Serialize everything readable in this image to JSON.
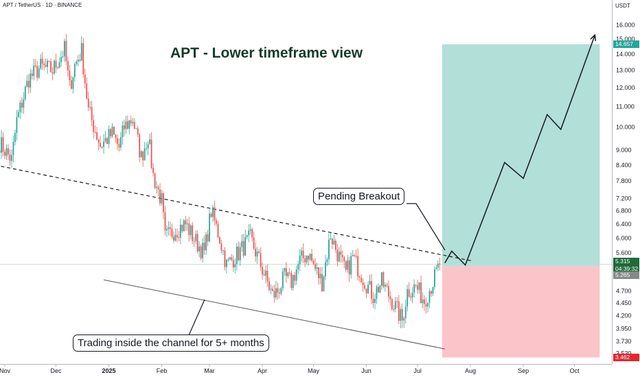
{
  "header": {
    "pair_title": "APT / TetherUS · 1D · BINANCE",
    "currency": "USDT"
  },
  "headline": "APT - Lower timeframe view",
  "annotations": {
    "pending_breakout": "Pending Breakout",
    "channel_note": "Trading inside the channel for 5+ months"
  },
  "price_tags": {
    "target": "14.657",
    "current": "5.315",
    "countdown": "04:39:32",
    "entry": "5.265",
    "stop": "3.462"
  },
  "colors": {
    "up": "#26a69a",
    "down": "#ef5350",
    "target_zone": "#b2dfd8",
    "stop_zone": "#fbc4c9",
    "current_tag": "#1e6b3a",
    "stop_tag": "#e5262d",
    "entry_tag": "#888888",
    "target_tag": "#26a69a"
  },
  "chart_data": {
    "type": "candlestick",
    "y_scale": "log",
    "ylim": [
      3.4,
      17.2
    ],
    "y_ticks": [
      "16.000",
      "15.000",
      "14.000",
      "13.000",
      "12.000",
      "11.000",
      "10.000",
      "9.000",
      "8.400",
      "7.800",
      "7.200",
      "6.800",
      "6.400",
      "6.000",
      "5.600",
      "4.700",
      "4.450",
      "4.200",
      "3.950",
      "3.730",
      "3.530"
    ],
    "x_ticks": [
      {
        "label": "Nov",
        "date": "2024-11-01",
        "bold": false
      },
      {
        "label": "Dec",
        "date": "2024-12-01",
        "bold": false
      },
      {
        "label": "2025",
        "date": "2025-01-01",
        "bold": true
      },
      {
        "label": "Feb",
        "date": "2025-02-01",
        "bold": false
      },
      {
        "label": "Mar",
        "date": "2025-03-01",
        "bold": false
      },
      {
        "label": "Apr",
        "date": "2025-04-01",
        "bold": false
      },
      {
        "label": "May",
        "date": "2025-05-01",
        "bold": false
      },
      {
        "label": "Jun",
        "date": "2025-06-01",
        "bold": false
      },
      {
        "label": "Jul",
        "date": "2025-07-01",
        "bold": false
      },
      {
        "label": "Aug",
        "date": "2025-08-01",
        "bold": false
      },
      {
        "label": "Sep",
        "date": "2025-09-01",
        "bold": false
      },
      {
        "label": "Oct",
        "date": "2025-10-01",
        "bold": false
      }
    ],
    "price_path": [
      {
        "date": "2024-10-29",
        "close": 9.3
      },
      {
        "date": "2024-11-05",
        "close": 8.6
      },
      {
        "date": "2024-11-08",
        "close": 10.3
      },
      {
        "date": "2024-11-15",
        "close": 12.5
      },
      {
        "date": "2024-11-22",
        "close": 13.2
      },
      {
        "date": "2024-11-29",
        "close": 13.0
      },
      {
        "date": "2024-12-06",
        "close": 14.3
      },
      {
        "date": "2024-12-09",
        "close": 12.0
      },
      {
        "date": "2024-12-12",
        "close": 13.3
      },
      {
        "date": "2024-12-16",
        "close": 14.2
      },
      {
        "date": "2024-12-20",
        "close": 10.8
      },
      {
        "date": "2024-12-27",
        "close": 9.2
      },
      {
        "date": "2025-01-03",
        "close": 9.7
      },
      {
        "date": "2025-01-07",
        "close": 9.1
      },
      {
        "date": "2025-01-10",
        "close": 10.0
      },
      {
        "date": "2025-01-15",
        "close": 10.4
      },
      {
        "date": "2025-01-20",
        "close": 8.7
      },
      {
        "date": "2025-01-24",
        "close": 9.6
      },
      {
        "date": "2025-01-27",
        "close": 8.0
      },
      {
        "date": "2025-02-01",
        "close": 7.1
      },
      {
        "date": "2025-02-03",
        "close": 6.0
      },
      {
        "date": "2025-02-08",
        "close": 6.2
      },
      {
        "date": "2025-02-15",
        "close": 6.4
      },
      {
        "date": "2025-02-21",
        "close": 5.9
      },
      {
        "date": "2025-02-26",
        "close": 5.6
      },
      {
        "date": "2025-03-02",
        "close": 6.8
      },
      {
        "date": "2025-03-07",
        "close": 6.0
      },
      {
        "date": "2025-03-11",
        "close": 5.3
      },
      {
        "date": "2025-03-18",
        "close": 5.6
      },
      {
        "date": "2025-03-25",
        "close": 6.0
      },
      {
        "date": "2025-03-31",
        "close": 5.3
      },
      {
        "date": "2025-04-07",
        "close": 4.6
      },
      {
        "date": "2025-04-10",
        "close": 4.7
      },
      {
        "date": "2025-04-14",
        "close": 5.0
      },
      {
        "date": "2025-04-18",
        "close": 4.9
      },
      {
        "date": "2025-04-23",
        "close": 5.4
      },
      {
        "date": "2025-04-28",
        "close": 5.6
      },
      {
        "date": "2025-05-02",
        "close": 5.2
      },
      {
        "date": "2025-05-06",
        "close": 4.9
      },
      {
        "date": "2025-05-11",
        "close": 6.1
      },
      {
        "date": "2025-05-15",
        "close": 5.6
      },
      {
        "date": "2025-05-20",
        "close": 5.1
      },
      {
        "date": "2025-05-24",
        "close": 5.5
      },
      {
        "date": "2025-05-30",
        "close": 5.0
      },
      {
        "date": "2025-06-05",
        "close": 4.6
      },
      {
        "date": "2025-06-10",
        "close": 4.9
      },
      {
        "date": "2025-06-16",
        "close": 4.5
      },
      {
        "date": "2025-06-22",
        "close": 4.1
      },
      {
        "date": "2025-06-25",
        "close": 4.7
      },
      {
        "date": "2025-06-30",
        "close": 4.8
      },
      {
        "date": "2025-07-05",
        "close": 4.5
      },
      {
        "date": "2025-07-10",
        "close": 4.9
      },
      {
        "date": "2025-07-14",
        "close": 5.32
      }
    ],
    "descending_resistance": [
      {
        "date": "2024-10-29",
        "price": 8.4
      },
      {
        "date": "2025-08-02",
        "price": 5.4
      }
    ],
    "channel_support": [
      {
        "date": "2024-12-29",
        "price": 4.95
      },
      {
        "date": "2025-07-17",
        "price": 3.6
      }
    ],
    "projection_path": [
      {
        "date": "2025-07-17",
        "price": 5.35
      },
      {
        "date": "2025-07-21",
        "price": 5.65
      },
      {
        "date": "2025-07-29",
        "price": 5.3
      },
      {
        "date": "2025-08-21",
        "price": 8.5
      },
      {
        "date": "2025-09-01",
        "price": 7.9
      },
      {
        "date": "2025-09-15",
        "price": 10.6
      },
      {
        "date": "2025-09-23",
        "price": 9.9
      },
      {
        "date": "2025-10-13",
        "price": 15.3
      }
    ],
    "position": {
      "entry": 5.265,
      "target": 14.657,
      "stop": 3.462,
      "start_date": "2025-07-17",
      "end_date": "2025-10-15"
    },
    "current_price": 5.315
  }
}
